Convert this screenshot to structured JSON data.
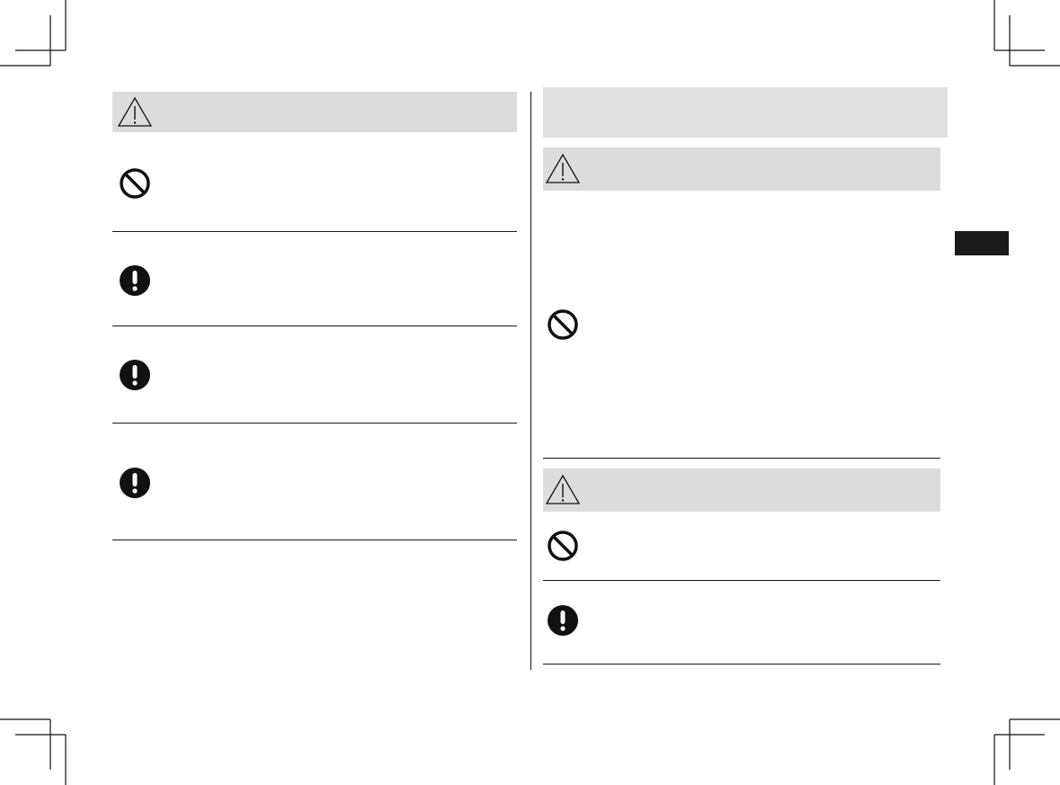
{
  "colors": {
    "band": "#dcdcdc",
    "header_band": "#e0e0e0",
    "ink": "#1a1a1a",
    "tab": "#1a1a1a"
  },
  "left_column": {
    "header": {
      "icon": "warning-triangle-icon",
      "text": ""
    },
    "items": [
      {
        "icon": "prohibition-icon",
        "text": ""
      },
      {
        "icon": "exclamation-icon",
        "text": ""
      },
      {
        "icon": "exclamation-icon",
        "text": ""
      },
      {
        "icon": "exclamation-icon",
        "text": ""
      }
    ]
  },
  "right_column": {
    "section_title": "",
    "blocks": [
      {
        "header_icon": "warning-triangle-icon",
        "items": [
          {
            "icon": "prohibition-icon",
            "text": ""
          }
        ]
      },
      {
        "header_icon": "warning-triangle-icon",
        "items": [
          {
            "icon": "prohibition-icon",
            "text": ""
          },
          {
            "icon": "exclamation-icon",
            "text": ""
          }
        ]
      }
    ]
  },
  "side_tab": {
    "label": ""
  }
}
